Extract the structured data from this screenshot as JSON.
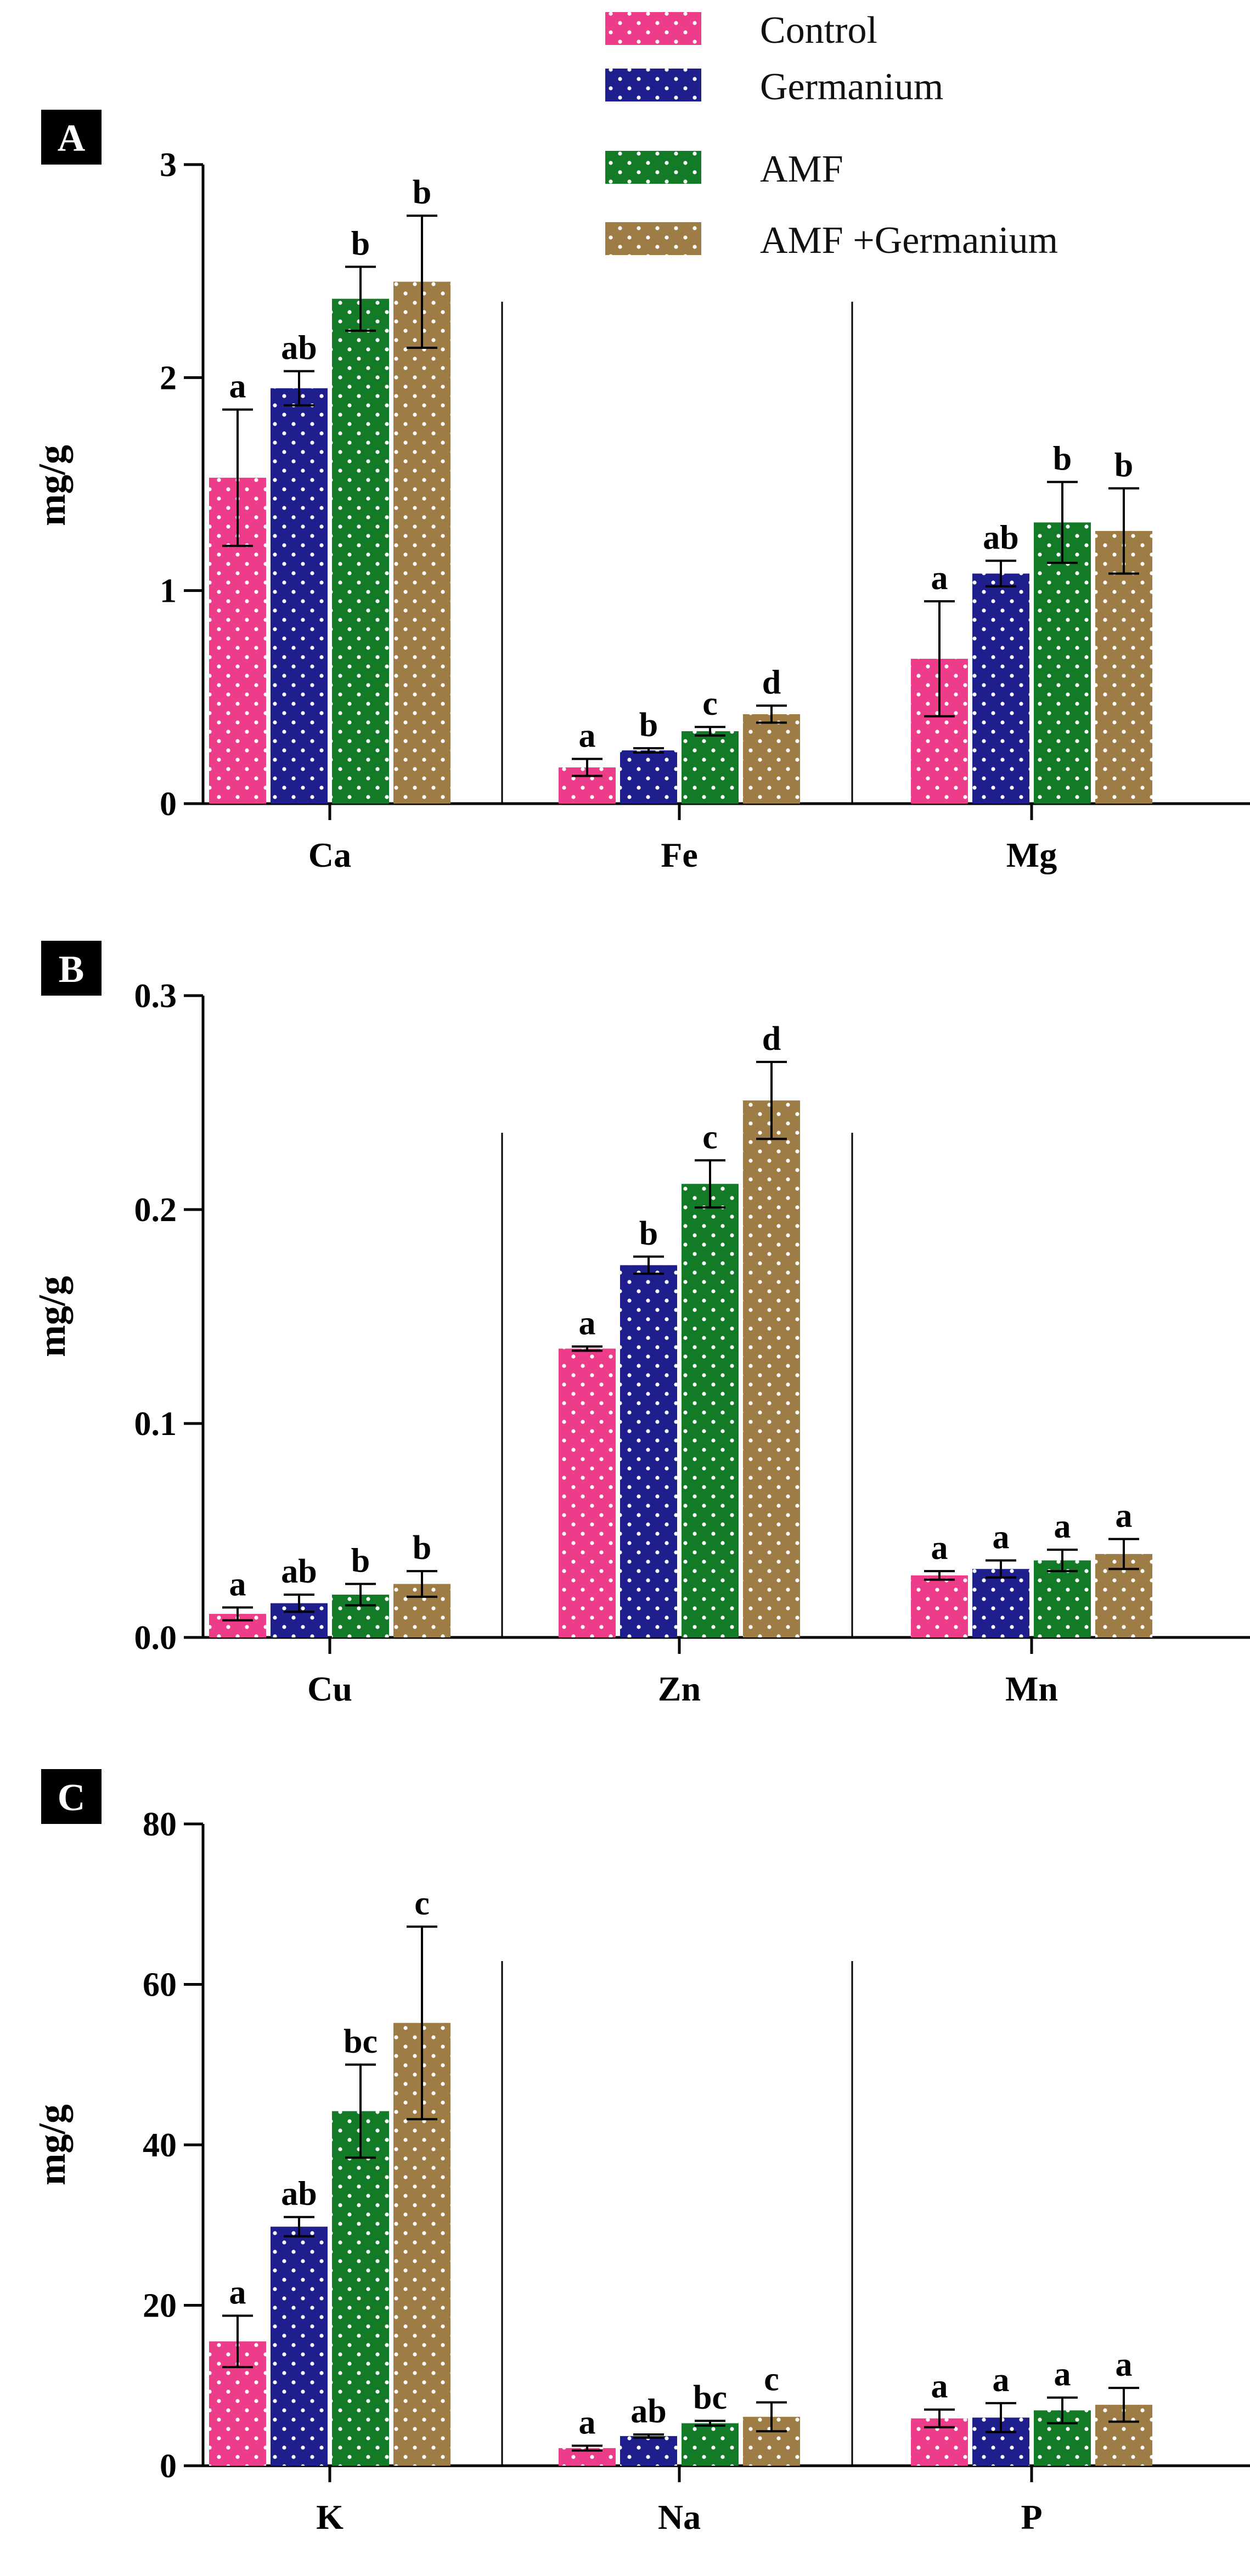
{
  "legend": {
    "series": [
      {
        "name": "Control",
        "color": "#ec3c8a"
      },
      {
        "name": "Germanium",
        "color": "#1e1e8c"
      },
      {
        "name": "AMF",
        "color": "#137a28"
      },
      {
        "name": "AMF +Germanium",
        "color": "#9e7c46"
      }
    ]
  },
  "chart_data": [
    {
      "type": "bar",
      "panel": "A",
      "ylabel": "mg/g",
      "ylim": [
        0,
        3
      ],
      "yticks": [
        "0",
        "1",
        "2",
        "3"
      ],
      "yticks_values": [
        0,
        1,
        2,
        3
      ],
      "categories": [
        "Ca",
        "Fe",
        "Mg"
      ],
      "series": [
        {
          "name": "Control",
          "values": [
            1.53,
            0.17,
            0.68
          ],
          "errors": [
            0.32,
            0.04,
            0.27
          ],
          "letters": [
            "a",
            "a",
            "a"
          ]
        },
        {
          "name": "Germanium",
          "values": [
            1.95,
            0.25,
            1.08
          ],
          "errors": [
            0.08,
            0.01,
            0.06
          ],
          "letters": [
            "ab",
            "b",
            "ab"
          ]
        },
        {
          "name": "AMF",
          "values": [
            2.37,
            0.34,
            1.32
          ],
          "errors": [
            0.15,
            0.02,
            0.19
          ],
          "letters": [
            "b",
            "c",
            "b"
          ]
        },
        {
          "name": "AMF +Germanium",
          "values": [
            2.45,
            0.42,
            1.28
          ],
          "errors": [
            0.31,
            0.04,
            0.2
          ],
          "letters": [
            "b",
            "d",
            "b"
          ]
        }
      ]
    },
    {
      "type": "bar",
      "panel": "B",
      "ylabel": "mg/g",
      "ylim": [
        0,
        0.3
      ],
      "yticks": [
        "0.0",
        "0.1",
        "0.2",
        "0.3"
      ],
      "yticks_values": [
        0,
        0.1,
        0.2,
        0.3
      ],
      "categories": [
        "Cu",
        "Zn",
        "Mn"
      ],
      "series": [
        {
          "name": "Control",
          "values": [
            0.011,
            0.135,
            0.029
          ],
          "errors": [
            0.003,
            0.001,
            0.002
          ],
          "letters": [
            "a",
            "a",
            "a"
          ]
        },
        {
          "name": "Germanium",
          "values": [
            0.016,
            0.174,
            0.032
          ],
          "errors": [
            0.004,
            0.004,
            0.004
          ],
          "letters": [
            "ab",
            "b",
            "a"
          ]
        },
        {
          "name": "AMF",
          "values": [
            0.02,
            0.212,
            0.036
          ],
          "errors": [
            0.005,
            0.011,
            0.005
          ],
          "letters": [
            "b",
            "c",
            "a"
          ]
        },
        {
          "name": "AMF +Germanium",
          "values": [
            0.025,
            0.251,
            0.039
          ],
          "errors": [
            0.006,
            0.018,
            0.007
          ],
          "letters": [
            "b",
            "d",
            "a"
          ]
        }
      ]
    },
    {
      "type": "bar",
      "panel": "C",
      "ylabel": "mg/g",
      "ylim": [
        0,
        80
      ],
      "yticks": [
        "0",
        "20",
        "40",
        "60",
        "80"
      ],
      "yticks_values": [
        0,
        20,
        40,
        60,
        80
      ],
      "categories": [
        "K",
        "Na",
        "P"
      ],
      "series": [
        {
          "name": "Control",
          "values": [
            15.5,
            2.2,
            5.9
          ],
          "errors": [
            3.2,
            0.3,
            1.1
          ],
          "letters": [
            "a",
            "a",
            "a"
          ]
        },
        {
          "name": "Germanium",
          "values": [
            29.8,
            3.7,
            6.0
          ],
          "errors": [
            1.2,
            0.2,
            1.8
          ],
          "letters": [
            "ab",
            "ab",
            "a"
          ]
        },
        {
          "name": "AMF",
          "values": [
            44.2,
            5.3,
            6.9
          ],
          "errors": [
            5.8,
            0.3,
            1.6
          ],
          "letters": [
            "bc",
            "bc",
            "a"
          ]
        },
        {
          "name": "AMF +Germanium",
          "values": [
            55.2,
            6.1,
            7.6
          ],
          "errors": [
            12.0,
            1.8,
            2.1
          ],
          "letters": [
            "c",
            "c",
            "a"
          ]
        }
      ]
    }
  ]
}
